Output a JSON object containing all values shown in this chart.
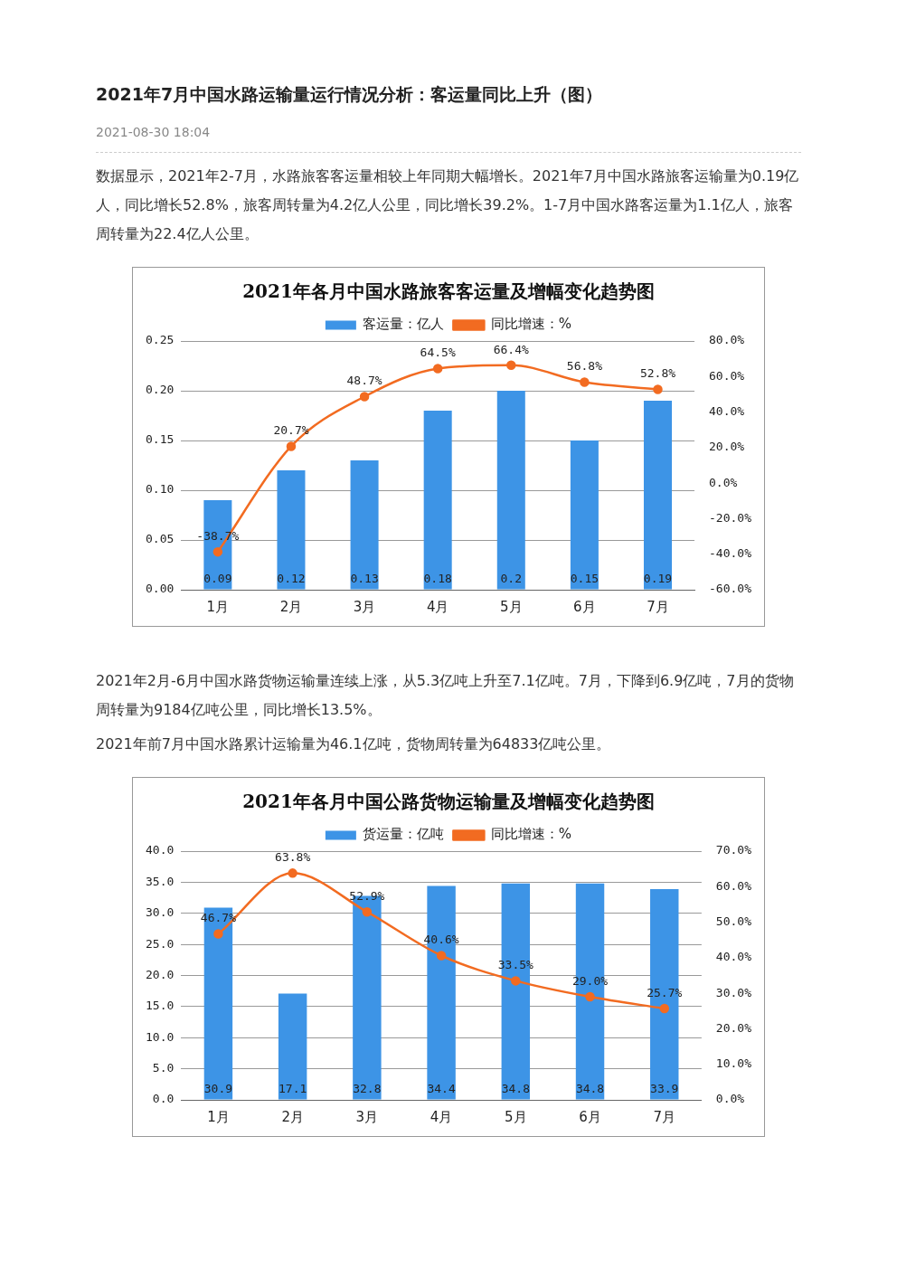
{
  "chart_data": [
    {
      "type": "bar",
      "title": "2021年各月中国水路旅客客运量及增幅变化趋势图",
      "annotations": [
        "2021年7月中国水路运输量运行情况分析：客运量同比上升（图）",
        "2021-08-30 18:04",
        "数据显示，2021年2-7月，水路旅客客运量相较上年同期大幅增长。2021年7月中国水路旅客运输量为0.19亿人，同比增长52.8%，旅客周转量为4.2亿人公里，同比增长39.2%。1-7月中国水路客运量为1.1亿人，旅客周转量为22.4亿人公里。"
      ],
      "categories": [
        "1月",
        "2月",
        "3月",
        "4月",
        "5月",
        "6月",
        "7月"
      ],
      "series": [
        {
          "name": "客运量：亿人",
          "color": "#3d94e6",
          "values": [
            0.09,
            0.12,
            0.13,
            0.18,
            0.2,
            0.15,
            0.19
          ],
          "value_labels": [
            "0.09",
            "0.12",
            "0.13",
            "0.18",
            "0.2",
            "0.15",
            "0.19"
          ]
        },
        {
          "name": "同比增速：%",
          "type": "line",
          "axis": "y2",
          "color": "#f26b21",
          "values": [
            -38.7,
            20.7,
            48.7,
            64.5,
            66.4,
            56.8,
            52.8
          ],
          "value_labels": [
            "-38.7%",
            "20.7%",
            "48.7%",
            "64.5%",
            "66.4%",
            "56.8%",
            "52.8%"
          ]
        }
      ],
      "ylim": [
        0,
        0.25
      ],
      "yticks": [
        {
          "value": 0,
          "label": "0.00"
        },
        {
          "value": 0.05,
          "label": "0.05"
        },
        {
          "value": 0.1,
          "label": "0.10"
        },
        {
          "value": 0.15,
          "label": "0.15"
        },
        {
          "value": 0.2,
          "label": "0.20"
        },
        {
          "value": 0.25,
          "label": "0.25"
        }
      ],
      "y2lim": [
        -60,
        80
      ],
      "y2ticks": [
        {
          "value": -60,
          "label": "-60.0%"
        },
        {
          "value": -40,
          "label": "-40.0%"
        },
        {
          "value": -20,
          "label": "-20.0%"
        },
        {
          "value": 0,
          "label": "0.0%"
        },
        {
          "value": 20,
          "label": "20.0%"
        },
        {
          "value": 40,
          "label": "40.0%"
        },
        {
          "value": 60,
          "label": "60.0%"
        },
        {
          "value": 80,
          "label": "80.0%"
        }
      ],
      "grid": "y",
      "legend": "top",
      "marker": "circle"
    },
    {
      "type": "bar",
      "title": "2021年各月中国公路货物运输量及增幅变化趋势图",
      "annotations": [
        "2021年2月-6月中国水路货物运输量连续上涨，从5.3亿吨上升至7.1亿吨。7月，下降到6.9亿吨，7月的货物周转量为9184亿吨公里，同比增长13.5%。",
        "2021年前7月中国水路累计运输量为46.1亿吨，货物周转量为64833亿吨公里。"
      ],
      "categories": [
        "1月",
        "2月",
        "3月",
        "4月",
        "5月",
        "6月",
        "7月"
      ],
      "series": [
        {
          "name": "货运量：亿吨",
          "color": "#3d94e6",
          "values": [
            30.9,
            17.1,
            32.8,
            34.4,
            34.8,
            34.8,
            33.9
          ],
          "value_labels": [
            "30.9",
            "17.1",
            "32.8",
            "34.4",
            "34.8",
            "34.8",
            "33.9"
          ]
        },
        {
          "name": "同比增速：%",
          "type": "line",
          "axis": "y2",
          "color": "#f26b21",
          "values": [
            46.7,
            63.8,
            52.9,
            40.6,
            33.5,
            29.0,
            25.7
          ],
          "value_labels": [
            "46.7%",
            "63.8%",
            "52.9%",
            "40.6%",
            "33.5%",
            "29.0%",
            "25.7%"
          ]
        }
      ],
      "ylim": [
        0,
        40
      ],
      "yticks": [
        {
          "value": 0,
          "label": "0.0"
        },
        {
          "value": 5,
          "label": "5.0"
        },
        {
          "value": 10,
          "label": "10.0"
        },
        {
          "value": 15,
          "label": "15.0"
        },
        {
          "value": 20,
          "label": "20.0"
        },
        {
          "value": 25,
          "label": "25.0"
        },
        {
          "value": 30,
          "label": "30.0"
        },
        {
          "value": 35,
          "label": "35.0"
        },
        {
          "value": 40,
          "label": "40.0"
        }
      ],
      "y2lim": [
        0,
        70
      ],
      "y2ticks": [
        {
          "value": 0,
          "label": "0.0%"
        },
        {
          "value": 10,
          "label": "10.0%"
        },
        {
          "value": 20,
          "label": "20.0%"
        },
        {
          "value": 30,
          "label": "30.0%"
        },
        {
          "value": 40,
          "label": "40.0%"
        },
        {
          "value": 50,
          "label": "50.0%"
        },
        {
          "value": 60,
          "label": "60.0%"
        },
        {
          "value": 70,
          "label": "70.0%"
        }
      ],
      "grid": "y",
      "legend": "top",
      "marker": "circle"
    }
  ]
}
